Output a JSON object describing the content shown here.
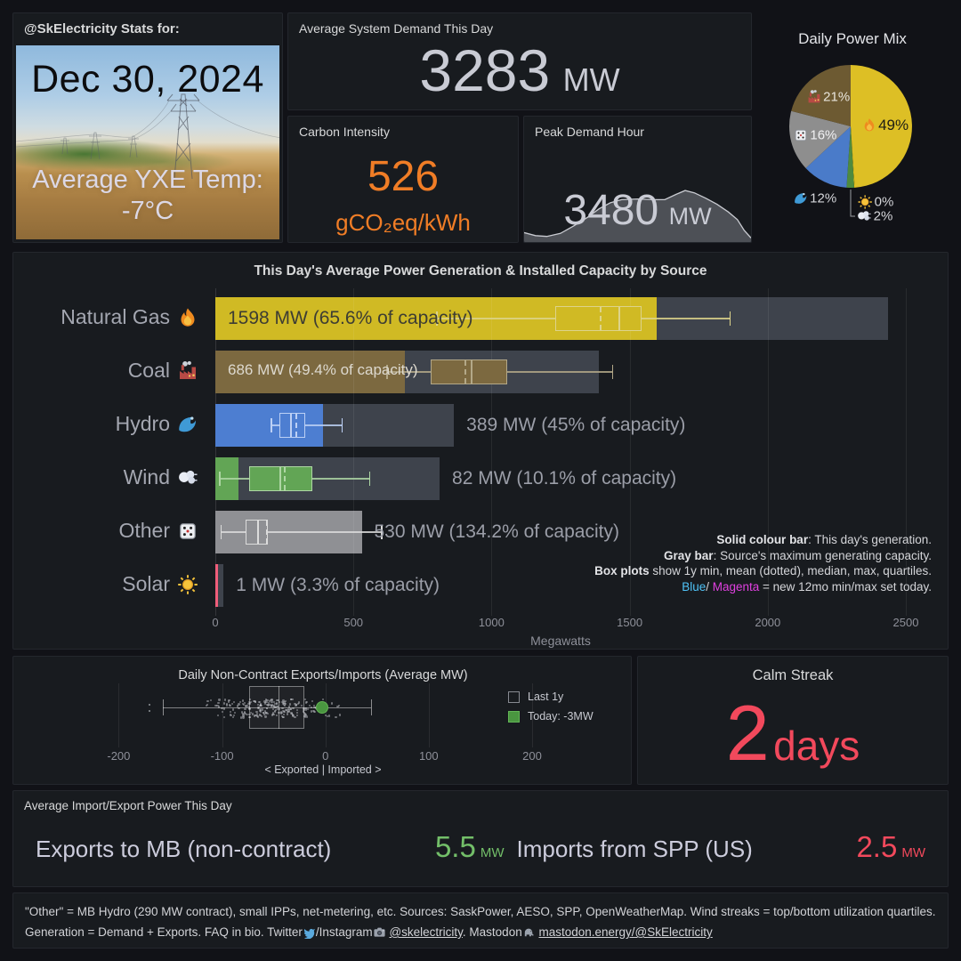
{
  "page": {
    "bg": "#111217",
    "panel_bg": "#181b1f",
    "accent_red": "#f2495c",
    "accent_green": "#73bf69",
    "accent_orange": "#f07d26"
  },
  "stats_panel": {
    "title": "@SkElectricity Stats for:",
    "date": "Dec 30, 2024",
    "temp_label": "Average YXE Temp:",
    "temp_value": "-7°C"
  },
  "demand_panel": {
    "title": "Average System Demand This Day",
    "value": "3283",
    "unit": "MW"
  },
  "carbon_panel": {
    "title": "Carbon Intensity",
    "value": "526",
    "unit": "gCO₂eq/kWh"
  },
  "peak_panel": {
    "title": "Peak Demand Hour",
    "value": "3480",
    "unit": "MW"
  },
  "calm_panel": {
    "title": "Calm Streak",
    "value": "2",
    "unit": "days"
  },
  "impex_panel": {
    "title": "Average Import/Export Power This Day",
    "stats": [
      {
        "label": "Exports to MB (non-contract)",
        "value": "5.5",
        "unit": "MW",
        "color": "#73bf69"
      },
      {
        "label": "Imports from SPP (US)",
        "value": "2.5",
        "unit": "MW",
        "color": "#f2495c"
      }
    ]
  },
  "footer": {
    "segments": [
      {
        "text": "\"Other\" = MB Hydro (290 MW contract), small IPPs, net-metering, etc. Sources: SaskPower, AESO, SPP, OpenWeatherMap. Wind streaks = top/bottom utilization quartiles. Generation = Demand + Exports. FAQ in bio. Twitter"
      },
      {
        "icon": "bird-icon",
        "emoji": "🐦"
      },
      {
        "text": "/Instagram"
      },
      {
        "icon": "camera-icon",
        "emoji": "📸"
      },
      {
        "text": " "
      },
      {
        "text": "@skelectricity",
        "link": true
      },
      {
        "text": ". Mastodon"
      },
      {
        "icon": "elephant-icon",
        "emoji": "🐘"
      },
      {
        "text": " "
      },
      {
        "text": "mastodon.energy/@SkElectricity",
        "link": true
      }
    ]
  },
  "chart_data": [
    {
      "id": "power_mix",
      "type": "pie",
      "title": "Daily Power Mix",
      "start": "12-oclock",
      "direction": "clockwise",
      "slices": [
        {
          "name": "Natural Gas",
          "emoji": "🔥",
          "icon": "fire-icon",
          "pct": 49,
          "display": "49%",
          "color": "#ddbf25",
          "mode": "inside",
          "text_color": "#1d1d15"
        },
        {
          "name": "Solar",
          "emoji": "🌞",
          "icon": "sun-icon",
          "pct": 0.15,
          "display": "0%",
          "color": "#f2cc0c",
          "mode": "callout",
          "text_color": "#d4d5d9"
        },
        {
          "name": "Wind",
          "emoji": "💨",
          "icon": "wind-icon",
          "pct": 2,
          "display": "2%",
          "color": "#4e8a3f",
          "mode": "callout",
          "text_color": "#d4d5d9"
        },
        {
          "name": "Hydro",
          "emoji": "🌊",
          "icon": "wave-icon",
          "pct": 12,
          "display": "12%",
          "color": "#4a7bc9",
          "mode": "out",
          "text_color": "#d4d5d9"
        },
        {
          "name": "Other",
          "emoji": "🎲",
          "icon": "dice-icon",
          "pct": 16,
          "display": "16%",
          "color": "#8e8e8e",
          "mode": "inside",
          "text_color": "#f0f0f2"
        },
        {
          "name": "Coal",
          "emoji": "🏭",
          "icon": "factory-icon",
          "pct": 21,
          "display": "21%",
          "color": "#6d5a32",
          "mode": "inside",
          "text_color": "#e8e4da"
        }
      ]
    },
    {
      "id": "generation",
      "type": "bar+box",
      "title": "This Day's Average Power Generation & Installed Capacity by Source",
      "xlabel": "Megawatts",
      "xlim": [
        0,
        2500
      ],
      "xticks": [
        0,
        500,
        1000,
        1500,
        2000,
        2500
      ],
      "capacity_bar_color": "#3e434c",
      "rows": [
        {
          "name": "Natural Gas",
          "emoji": "🔥",
          "icon": "fire-icon",
          "gen_mw": 1598,
          "cap_mw": 2436,
          "label": "1598 MW (65.6% of capacity)",
          "label_inside": true,
          "label_color": "#3d3d33",
          "color": "#d0ba24",
          "box_stroke": "#ddd38b",
          "box": {
            "min": 800,
            "q1": 1232,
            "mean": 1390,
            "median": 1460,
            "q3": 1543,
            "max": 1861
          }
        },
        {
          "name": "Coal",
          "emoji": "🏭",
          "icon": "factory-icon",
          "gen_mw": 686,
          "cap_mw": 1389,
          "label": "686 MW (49.4% of capacity)",
          "label_inside": true,
          "label_color": "#ddd9cf",
          "color": "#7c6940",
          "box_stroke": "#b3a888",
          "box": {
            "min": 620,
            "q1": 781,
            "mean": 903,
            "median": 923,
            "q3": 1058,
            "max": 1436
          }
        },
        {
          "name": "Hydro",
          "emoji": "🌊",
          "icon": "wave-icon",
          "gen_mw": 389,
          "cap_mw": 864,
          "label": "389 MW (45% of capacity)",
          "label_inside": false,
          "label_color": "#9b9ea8",
          "color": "#4d7ed1",
          "box_stroke": "#bcd0f5",
          "box": {
            "min": 200,
            "q1": 233,
            "mean": 289,
            "median": 271,
            "q3": 325,
            "max": 456
          }
        },
        {
          "name": "Wind",
          "emoji": "💨",
          "icon": "wind-icon",
          "gen_mw": 82,
          "cap_mw": 812,
          "label": "82 MW (10.1% of capacity)",
          "label_inside": false,
          "label_color": "#9b9ea8",
          "color": "#62a555",
          "box_stroke": "#aed6a4",
          "box": {
            "min": 13,
            "q1": 121,
            "mean": 249,
            "median": 233,
            "q3": 352,
            "max": 557
          }
        },
        {
          "name": "Other",
          "emoji": "🎲",
          "icon": "dice-icon",
          "gen_mw": 530,
          "cap_mw": 395,
          "label": "530 MW (134.2% of capacity)",
          "label_inside": false,
          "label_color": "#9b9ea8",
          "color": "#8f9094",
          "box_stroke": "#dcdcdc",
          "box": {
            "min": 18,
            "q1": 109,
            "mean": 185,
            "median": 150,
            "q3": 190,
            "max": 600
          }
        },
        {
          "name": "Solar",
          "emoji": "🌞",
          "icon": "sun-icon",
          "gen_mw": 1,
          "cap_mw": 30,
          "label": "1 MW (3.3% of capacity)",
          "label_inside": false,
          "label_color": "#9b9ea8",
          "color": "#ef5d7a",
          "box_stroke": "#ef5d7a",
          "box": null
        }
      ],
      "legend_lines": [
        [
          {
            "text": "Solid colour bar",
            "bold": true
          },
          {
            "text": ": This day's generation."
          }
        ],
        [
          {
            "text": "Gray bar",
            "bold": true
          },
          {
            "text": ": Source's maximum generating capacity."
          }
        ],
        [
          {
            "text": "Box plots",
            "bold": true
          },
          {
            "text": " show 1y min, mean (dotted), median, max, quartiles."
          }
        ],
        [
          {
            "text": "Blue",
            "color": "#4fc3f7"
          },
          {
            "text": "/ "
          },
          {
            "text": "Magenta",
            "color": "#e040e0"
          },
          {
            "text": " = new 12mo min/max set today."
          }
        ]
      ]
    },
    {
      "id": "exports_strip",
      "type": "box+strip",
      "title": "Daily Non-Contract Exports/Imports (Average MW)",
      "xticks": [
        -200,
        -100,
        0,
        100,
        200
      ],
      "xlabel": "< Exported | Imported >",
      "box": {
        "min": -157,
        "q1": -74,
        "median": -45,
        "q3": -20,
        "max": 44
      },
      "today_mw": -3,
      "today_color": "#4a9640",
      "legend": [
        {
          "label": "Last 1y",
          "swatch": "outline"
        },
        {
          "label": "Today: -3MW",
          "swatch": "#4a9640"
        }
      ]
    },
    {
      "id": "peak_sparkline",
      "type": "area",
      "peak_value_mw": 3480,
      "points": [
        [
          0,
          0.1
        ],
        [
          0.05,
          0.06
        ],
        [
          0.1,
          0.05
        ],
        [
          0.16,
          0.09
        ],
        [
          0.22,
          0.19
        ],
        [
          0.28,
          0.3
        ],
        [
          0.33,
          0.41
        ],
        [
          0.38,
          0.49
        ],
        [
          0.43,
          0.53
        ],
        [
          0.5,
          0.54
        ],
        [
          0.57,
          0.53
        ],
        [
          0.62,
          0.53
        ],
        [
          0.67,
          0.6
        ],
        [
          0.71,
          0.65
        ],
        [
          0.75,
          0.62
        ],
        [
          0.8,
          0.55
        ],
        [
          0.85,
          0.47
        ],
        [
          0.9,
          0.37
        ],
        [
          0.94,
          0.27
        ],
        [
          0.97,
          0.13
        ],
        [
          1,
          0.03
        ]
      ]
    }
  ]
}
